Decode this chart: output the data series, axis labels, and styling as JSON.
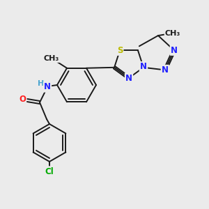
{
  "background_color": "#ebebeb",
  "bond_color": "#1a1a1a",
  "atom_colors": {
    "N": "#2020ff",
    "O": "#ff2020",
    "S": "#bbbb00",
    "Cl": "#00aa00",
    "H": "#4da6d0",
    "C": "#1a1a1a"
  },
  "font_size_atom": 8.5,
  "lw": 1.4,
  "r_hex": 26,
  "r_pent": 20
}
